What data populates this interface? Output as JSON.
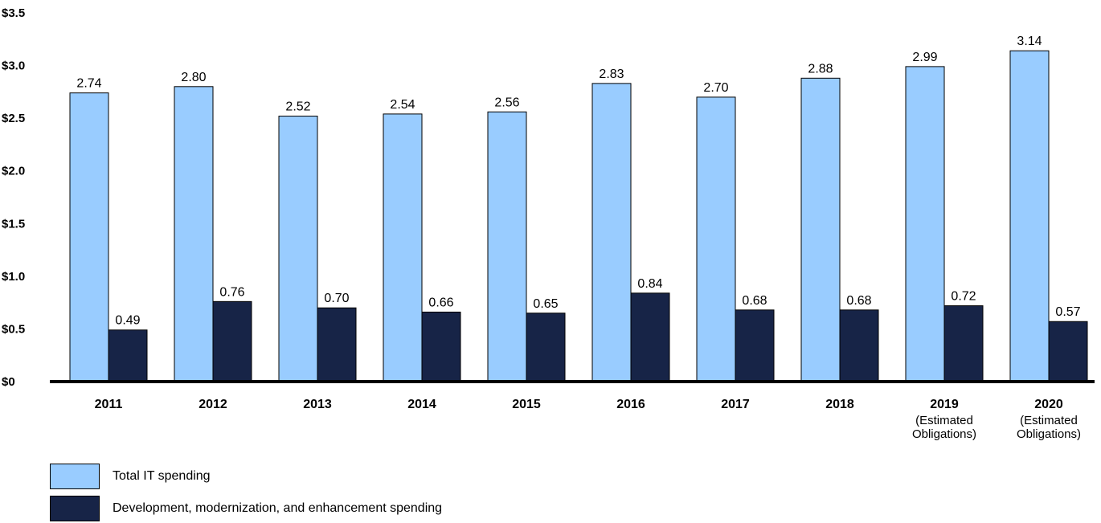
{
  "chart_data": {
    "type": "bar",
    "categories": [
      {
        "year": "2011",
        "note": []
      },
      {
        "year": "2012",
        "note": []
      },
      {
        "year": "2013",
        "note": []
      },
      {
        "year": "2014",
        "note": []
      },
      {
        "year": "2015",
        "note": []
      },
      {
        "year": "2016",
        "note": []
      },
      {
        "year": "2017",
        "note": []
      },
      {
        "year": "2018",
        "note": []
      },
      {
        "year": "2019",
        "note": [
          "(Estimated",
          "Obligations)"
        ]
      },
      {
        "year": "2020",
        "note": [
          "(Estimated",
          "Obligations)"
        ]
      }
    ],
    "series": [
      {
        "name": "Total IT spending",
        "color": "#99ccff",
        "values": [
          2.74,
          2.8,
          2.52,
          2.54,
          2.56,
          2.83,
          2.7,
          2.88,
          2.99,
          3.14
        ],
        "labels": [
          "2.74",
          "2.80",
          "2.52",
          "2.54",
          "2.56",
          "2.83",
          "2.70",
          "2.88",
          "2.99",
          "3.14"
        ]
      },
      {
        "name": "Development, modernization, and enhancement spending",
        "color": "#172447",
        "values": [
          0.49,
          0.76,
          0.7,
          0.66,
          0.65,
          0.84,
          0.68,
          0.68,
          0.72,
          0.57
        ],
        "labels": [
          "0.49",
          "0.76",
          "0.70",
          "0.66",
          "0.65",
          "0.84",
          "0.68",
          "0.68",
          "0.72",
          "0.57"
        ]
      }
    ],
    "y_ticks": [
      {
        "value": 0,
        "label": "$0"
      },
      {
        "value": 0.5,
        "label": "$0.5"
      },
      {
        "value": 1.0,
        "label": "$1.0"
      },
      {
        "value": 1.5,
        "label": "$1.5"
      },
      {
        "value": 2.0,
        "label": "$2.0"
      },
      {
        "value": 2.5,
        "label": "$2.5"
      },
      {
        "value": 3.0,
        "label": "$3.0"
      },
      {
        "value": 3.5,
        "label": "$3.5"
      }
    ],
    "ylim": [
      0,
      3.5
    ],
    "grid": false,
    "legend_position": "bottom-left",
    "title": "",
    "xlabel": "",
    "ylabel": ""
  },
  "legend": [
    {
      "label": "Total IT spending",
      "color": "#99ccff"
    },
    {
      "label": "Development, modernization, and enhancement spending",
      "color": "#172447"
    }
  ]
}
